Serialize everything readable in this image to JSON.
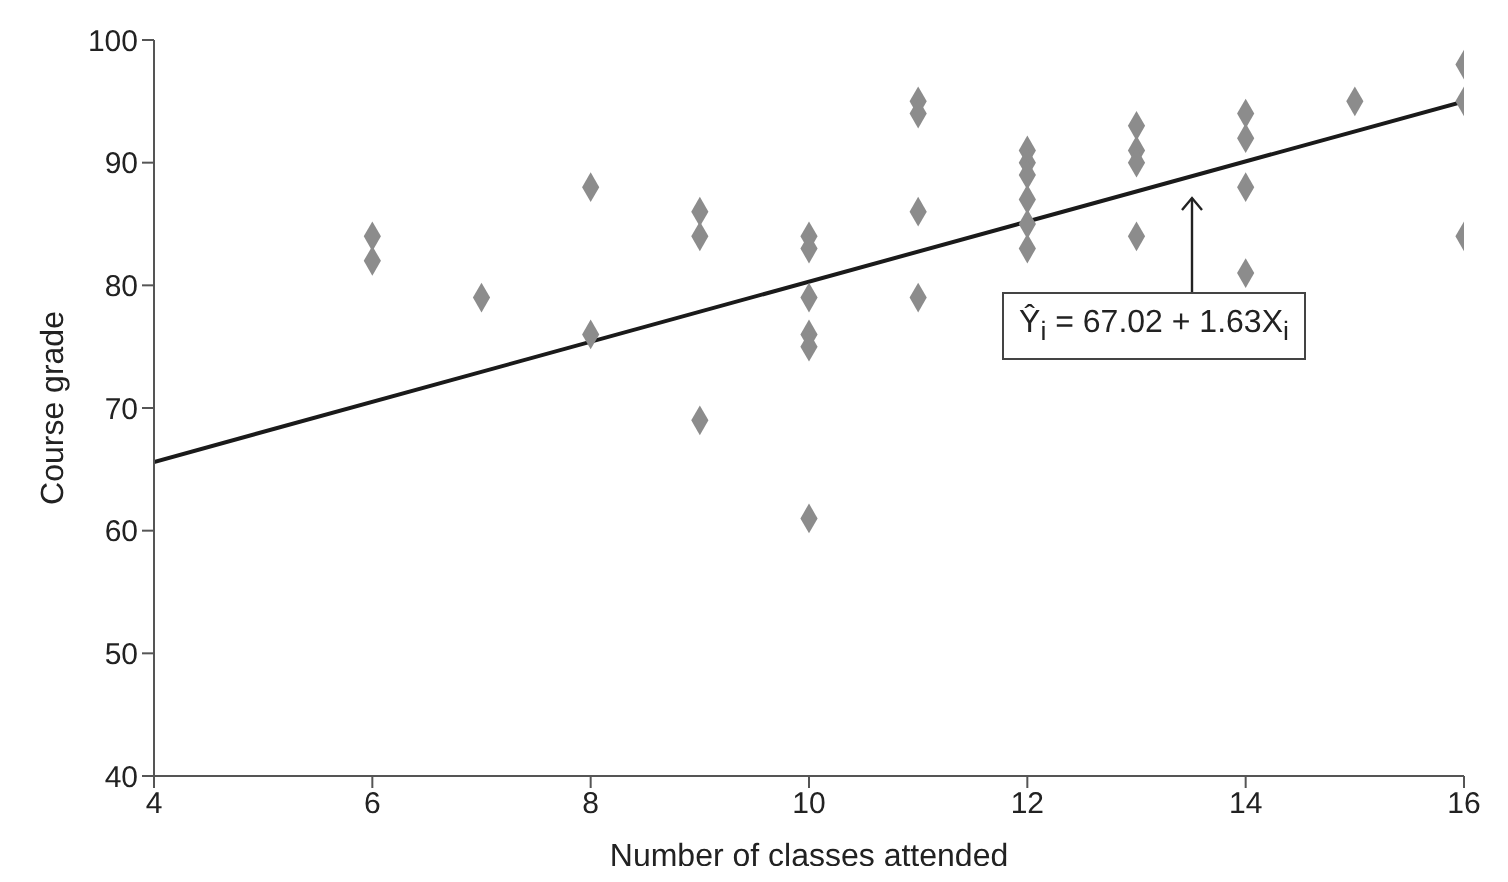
{
  "chart_data": {
    "type": "scatter",
    "xlabel": "Number of classes attended",
    "ylabel": "Course grade",
    "xlim": [
      4,
      16
    ],
    "xticks": [
      4,
      6,
      8,
      10,
      12,
      14,
      16
    ],
    "ylim": [
      40,
      100
    ],
    "yticks": [
      40,
      50,
      60,
      70,
      80,
      90,
      100
    ],
    "grid": false,
    "marker": "diamond",
    "series": [
      {
        "color": "#8c8c8c",
        "x": [
          6,
          6,
          7,
          8,
          8,
          9,
          9,
          9,
          10,
          10,
          10,
          10,
          10,
          10,
          11,
          11,
          11,
          11,
          12,
          12,
          12,
          12,
          12,
          12,
          13,
          13,
          13,
          13,
          14,
          14,
          14,
          14,
          15,
          16,
          16,
          16
        ],
        "values": [
          84,
          82,
          79,
          88,
          76,
          86,
          84,
          69,
          84,
          83,
          79,
          76,
          75,
          61,
          95,
          94,
          86,
          79,
          91,
          90,
          89,
          87,
          85,
          83,
          93,
          91,
          90,
          84,
          94,
          92,
          88,
          81,
          95,
          98,
          95,
          84
        ]
      },
      {
        "type": "line",
        "color": "#1a1a1a",
        "line_style": "solid",
        "marker": "none",
        "x": [
          4,
          16
        ],
        "values": [
          65.6,
          95
        ]
      }
    ],
    "annotations": [
      {
        "text": "Ŷ$_{i}$ = 67.02 + 1.63X$_{i}$",
        "x": 13.5,
        "y": 88
      }
    ]
  }
}
